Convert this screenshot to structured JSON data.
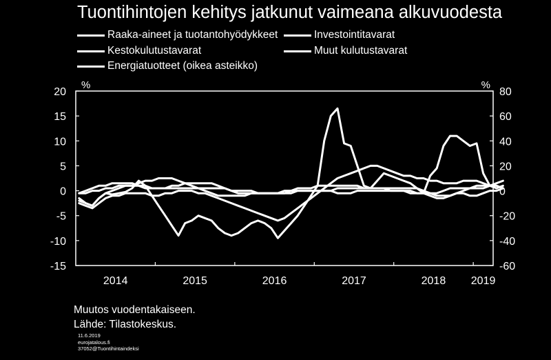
{
  "title": "Tuontihintojen kehitys jatkunut vaimeana alkuvuodesta",
  "footer": {
    "note": "Muutos vuodentakaiseen.",
    "source": "Lähde: Tilastokeskus.",
    "date": "11.6.2019",
    "site": "eurojatalous.fi",
    "code": "37052@Tuontihintaindeksi"
  },
  "chart_data": {
    "type": "line",
    "title": "Tuontihintojen kehitys jatkunut vaimeana alkuvuodesta",
    "xlabel": "",
    "ylabel": "%",
    "y2label": "%",
    "x_ticks": [
      "2014",
      "2015",
      "2016",
      "2017",
      "2018",
      "2019"
    ],
    "x_range": [
      "2014-01",
      "2019-03"
    ],
    "ylim": [
      -15,
      20
    ],
    "y_ticks": [
      -15,
      -10,
      -5,
      0,
      5,
      10,
      15,
      20
    ],
    "y2lim": [
      -60,
      80
    ],
    "y2_ticks": [
      -60,
      -40,
      -20,
      0,
      20,
      40,
      60,
      80
    ],
    "grid": false,
    "legend_placement": "top",
    "colors": {
      "background": "#000000",
      "lines": "#ffffff",
      "axes": "#ffffff"
    },
    "series": [
      {
        "name": "Raaka-aineet ja tuotantohyödykkeet",
        "axis": "left",
        "start": "2014-01",
        "values": [
          -2.5,
          -3,
          -3.5,
          -2.5,
          -1.5,
          -1,
          -1,
          -0.5,
          -0.5,
          -0.5,
          -0.5,
          -1,
          -1,
          -0.5,
          -0.5,
          0,
          0,
          0,
          -0.5,
          -0.5,
          -1,
          -1.5,
          -2,
          -2.5,
          -3,
          -3.5,
          -4,
          -4.5,
          -5,
          -5.5,
          -6,
          -5.5,
          -4.5,
          -3.5,
          -2.5,
          -1.5,
          -0.5,
          0.5,
          1.5,
          2.5,
          3,
          3.5,
          4,
          4.5,
          5,
          5,
          4.5,
          4,
          3.5,
          3,
          3,
          2.5,
          2.5,
          2,
          2,
          1.5,
          1.5,
          1.5,
          2,
          2,
          2,
          1.5,
          1,
          1,
          0.5
        ]
      },
      {
        "name": "Investointitavarat",
        "axis": "left",
        "start": "2014-01",
        "values": [
          -0.5,
          -0.5,
          0,
          0,
          0.5,
          0.5,
          1,
          1,
          1,
          1,
          0.5,
          0.5,
          0.5,
          0.5,
          0.5,
          0.5,
          0.5,
          0.5,
          0.5,
          0.5,
          0.5,
          0.5,
          0.5,
          0,
          0,
          0,
          0,
          -0.5,
          -0.5,
          -0.5,
          -0.5,
          -0.5,
          -0.5,
          0,
          0,
          0,
          0,
          0,
          0,
          0.5,
          0.5,
          0.5,
          0.5,
          0.5,
          0.5,
          0.5,
          0.5,
          0.5,
          0.5,
          0.5,
          0.5,
          0.5,
          0,
          -0.5,
          -1,
          -1,
          -1,
          -0.5,
          0,
          0.5,
          1,
          1,
          1,
          1,
          0.5
        ]
      },
      {
        "name": "Kestokulutustavarat",
        "axis": "left",
        "start": "2014-01",
        "values": [
          -1.5,
          -2.5,
          -3,
          -1.5,
          -0.5,
          0,
          0.5,
          1,
          1,
          1.5,
          2,
          2,
          2.5,
          2.5,
          2.5,
          2,
          1.5,
          1,
          0.5,
          0,
          -0.5,
          -1,
          -1,
          -1,
          -1,
          -1,
          -0.5,
          -0.5,
          -0.5,
          -0.5,
          -0.5,
          0,
          0,
          0.5,
          0.5,
          0.5,
          1,
          1,
          1,
          1,
          1,
          1,
          1,
          0.5,
          0.5,
          0.5,
          0.5,
          0,
          0,
          0,
          0,
          -0.5,
          -0.5,
          -1,
          -1.5,
          -1.5,
          -1,
          -0.5,
          -0.5,
          -1,
          -1,
          -0.5,
          0,
          0,
          0.5
        ]
      },
      {
        "name": "Muut kulutustavarat",
        "axis": "left",
        "start": "2014-01",
        "values": [
          -0.5,
          0,
          0.5,
          1,
          1,
          1.5,
          1.5,
          1.5,
          1.5,
          1,
          1,
          0.5,
          0.5,
          0.5,
          1,
          1,
          1.5,
          1.5,
          1.5,
          1.5,
          1.5,
          1,
          0.5,
          0,
          -0.5,
          -0.5,
          -0.5,
          -0.5,
          -0.5,
          -0.5,
          -0.5,
          -0.5,
          0,
          0,
          0,
          0,
          0,
          0,
          0,
          -0.5,
          -0.5,
          -0.5,
          0,
          0,
          0,
          0,
          0,
          0,
          0,
          0,
          -0.5,
          -0.5,
          -0.5,
          -0.5,
          -0.5,
          0,
          0.5,
          0.5,
          0.5,
          0.5,
          0.5,
          0.5,
          1,
          1.5,
          2
        ]
      },
      {
        "name": "Energiatuotteet (oikea asteikko)",
        "axis": "right",
        "start": "2014-01",
        "values": [
          -8,
          -10,
          -12,
          -6,
          -2,
          -3,
          -2,
          -1,
          2,
          8,
          4,
          -4,
          -12,
          -20,
          -28,
          -36,
          -26,
          -24,
          -20,
          -22,
          -24,
          -30,
          -34,
          -36,
          -34,
          -30,
          -26,
          -24,
          -26,
          -30,
          -38,
          -32,
          -26,
          -20,
          -12,
          -4,
          4,
          40,
          60,
          66,
          38,
          36,
          20,
          4,
          2,
          8,
          14,
          12,
          10,
          8,
          6,
          2,
          -2,
          12,
          18,
          36,
          44,
          44,
          40,
          36,
          38,
          14,
          4,
          2,
          4
        ]
      }
    ]
  }
}
